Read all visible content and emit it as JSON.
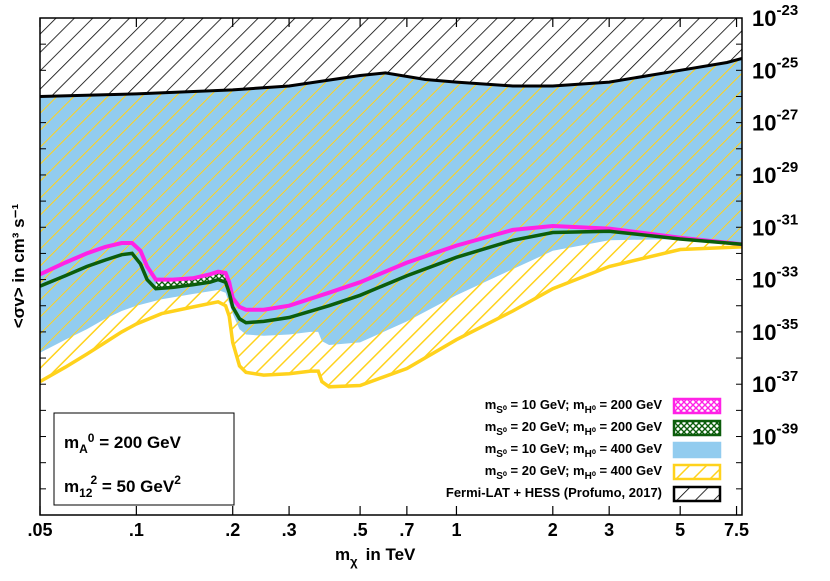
{
  "chart_data": {
    "type": "area",
    "xlabel_main": "m",
    "xlabel_sub": "χ",
    "xlabel_unit": "in TeV",
    "ylabel": "<σv> in cm³ s⁻¹",
    "x_scale": "log",
    "y_scale": "log",
    "xlim": [
      0.05,
      7.8
    ],
    "ylim": [
      1e-42,
      1e-23
    ],
    "x_ticks": [
      {
        "v": 0.05,
        "label": ".05"
      },
      {
        "v": 0.1,
        "label": ".1"
      },
      {
        "v": 0.2,
        "label": ".2"
      },
      {
        "v": 0.3,
        "label": ".3"
      },
      {
        "v": 0.5,
        "label": ".5"
      },
      {
        "v": 0.7,
        "label": ".7"
      },
      {
        "v": 1,
        "label": "1"
      },
      {
        "v": 2,
        "label": "2"
      },
      {
        "v": 3,
        "label": "3"
      },
      {
        "v": 5,
        "label": "5"
      },
      {
        "v": 7.5,
        "label": "7.5"
      }
    ],
    "y_ticks": [
      {
        "exp": -23,
        "base": "10",
        "sup": "-23"
      },
      {
        "exp": -25,
        "base": "10",
        "sup": "-25"
      },
      {
        "exp": -27,
        "base": "10",
        "sup": "-27"
      },
      {
        "exp": -29,
        "base": "10",
        "sup": "-29"
      },
      {
        "exp": -31,
        "base": "10",
        "sup": "-31"
      },
      {
        "exp": -33,
        "base": "10",
        "sup": "-33"
      },
      {
        "exp": -35,
        "base": "10",
        "sup": "-35"
      },
      {
        "exp": -37,
        "base": "10",
        "sup": "-37"
      },
      {
        "exp": -39,
        "base": "10",
        "sup": "-39"
      }
    ],
    "legend_position": "bottom-right",
    "series": [
      {
        "name": "m_S0 = 10 GeV; m_H0 = 200 GeV",
        "color": "#ff22e6",
        "style": "crosshatch",
        "x": [
          0.05,
          0.06,
          0.07,
          0.08,
          0.09,
          0.097,
          0.103,
          0.108,
          0.115,
          0.13,
          0.15,
          0.17,
          0.18,
          0.19,
          0.195,
          0.2,
          0.21,
          0.22,
          0.25,
          0.3,
          0.4,
          0.5,
          0.7,
          1.0,
          1.5,
          2.0,
          3.0,
          5.0,
          7.8
        ],
        "y": [
          -32.8,
          -32.35,
          -32.0,
          -31.75,
          -31.6,
          -31.6,
          -31.9,
          -32.5,
          -33.0,
          -33.0,
          -32.95,
          -32.8,
          -32.7,
          -32.75,
          -33.1,
          -33.7,
          -34.05,
          -34.15,
          -34.15,
          -34.0,
          -33.5,
          -33.1,
          -32.35,
          -31.7,
          -31.1,
          -30.95,
          -31.05,
          -31.4,
          -31.65
        ]
      },
      {
        "name": "m_S0 = 20 GeV; m_H0 = 200 GeV",
        "color": "#0b5d0b",
        "style": "crosshatch",
        "x": [
          0.05,
          0.06,
          0.07,
          0.08,
          0.09,
          0.097,
          0.103,
          0.108,
          0.115,
          0.13,
          0.15,
          0.17,
          0.18,
          0.19,
          0.195,
          0.2,
          0.21,
          0.22,
          0.25,
          0.3,
          0.4,
          0.5,
          0.7,
          1.0,
          1.5,
          2.0,
          3.0,
          5.0,
          7.8
        ],
        "y": [
          -33.25,
          -32.85,
          -32.5,
          -32.25,
          -32.05,
          -32.0,
          -32.4,
          -33.0,
          -33.35,
          -33.3,
          -33.2,
          -33.1,
          -33.0,
          -33.1,
          -33.5,
          -34.05,
          -34.5,
          -34.65,
          -34.6,
          -34.45,
          -34.0,
          -33.6,
          -32.85,
          -32.15,
          -31.5,
          -31.2,
          -31.15,
          -31.45,
          -31.65
        ]
      },
      {
        "name": "m_S0 = 10 GeV; m_H0 = 400 GeV",
        "color": "#92ccef",
        "style": "solid",
        "x": [
          0.05,
          0.06,
          0.07,
          0.08,
          0.09,
          0.1,
          0.12,
          0.15,
          0.18,
          0.19,
          0.195,
          0.2,
          0.21,
          0.22,
          0.25,
          0.3,
          0.35,
          0.37,
          0.38,
          0.4,
          0.5,
          0.7,
          1.0,
          1.5,
          2.0,
          3.0,
          5.0,
          7.8
        ],
        "y": [
          -35.8,
          -35.3,
          -34.9,
          -34.5,
          -34.2,
          -34.0,
          -33.75,
          -33.55,
          -33.4,
          -33.5,
          -33.9,
          -34.3,
          -34.9,
          -35.1,
          -35.15,
          -35.1,
          -35.0,
          -35.0,
          -35.35,
          -35.5,
          -35.4,
          -34.6,
          -33.6,
          -32.6,
          -31.9,
          -31.5,
          -31.45,
          -31.65
        ]
      },
      {
        "name": "m_S0 = 20 GeV; m_H0 = 400 GeV",
        "color": "#ffd21c",
        "style": "hatch",
        "x": [
          0.05,
          0.06,
          0.07,
          0.08,
          0.09,
          0.1,
          0.12,
          0.15,
          0.18,
          0.19,
          0.195,
          0.2,
          0.21,
          0.22,
          0.25,
          0.3,
          0.35,
          0.37,
          0.38,
          0.4,
          0.5,
          0.7,
          1.0,
          1.5,
          2.0,
          3.0,
          5.0,
          7.8
        ],
        "y": [
          -36.9,
          -36.35,
          -35.85,
          -35.4,
          -35.0,
          -34.7,
          -34.3,
          -34.05,
          -33.85,
          -34.0,
          -34.4,
          -35.4,
          -36.3,
          -36.55,
          -36.65,
          -36.6,
          -36.5,
          -36.5,
          -36.9,
          -37.1,
          -37.05,
          -36.4,
          -35.3,
          -34.2,
          -33.35,
          -32.5,
          -31.85,
          -31.75
        ]
      },
      {
        "name": "Fermi-LAT + HESS (Profumo, 2017)",
        "color": "#000000",
        "style": "hatch",
        "x": [
          0.05,
          0.1,
          0.2,
          0.3,
          0.5,
          0.6,
          0.8,
          1.0,
          1.5,
          2.0,
          3.0,
          5.0,
          7.0,
          7.8
        ],
        "y": [
          -26.0,
          -25.9,
          -25.75,
          -25.6,
          -25.2,
          -25.1,
          -25.35,
          -25.45,
          -25.6,
          -25.6,
          -25.45,
          -25.0,
          -24.7,
          -24.55
        ]
      }
    ]
  },
  "legend_entries": [
    {
      "label": "m<sub>S⁰</sub> = 10 GeV; m<sub>H⁰</sub> = 200 GeV",
      "sym": "magenta"
    },
    {
      "label": "m<sub>S⁰</sub> = 20 GeV; m<sub>H⁰</sub> = 200 GeV",
      "sym": "green"
    },
    {
      "label": "m<sub>S⁰</sub> = 10 GeV; m<sub>H⁰</sub> = 400 GeV",
      "sym": "blue"
    },
    {
      "label": "m<sub>S⁰</sub> = 20 GeV; m<sub>H⁰</sub> = 400 GeV",
      "sym": "yellow"
    },
    {
      "label": "Fermi-LAT + HESS (Profumo, 2017)",
      "sym": "black"
    }
  ],
  "info_box": {
    "line1_main": "m",
    "line1_sub": "A",
    "line1_sup": "0",
    "line1_rest": " = 200 GeV",
    "line2_main": "m",
    "line2_sub": "12",
    "line2_sup": "2",
    "line2_rest": " = 50 GeV",
    "line2_sup2": "2"
  }
}
